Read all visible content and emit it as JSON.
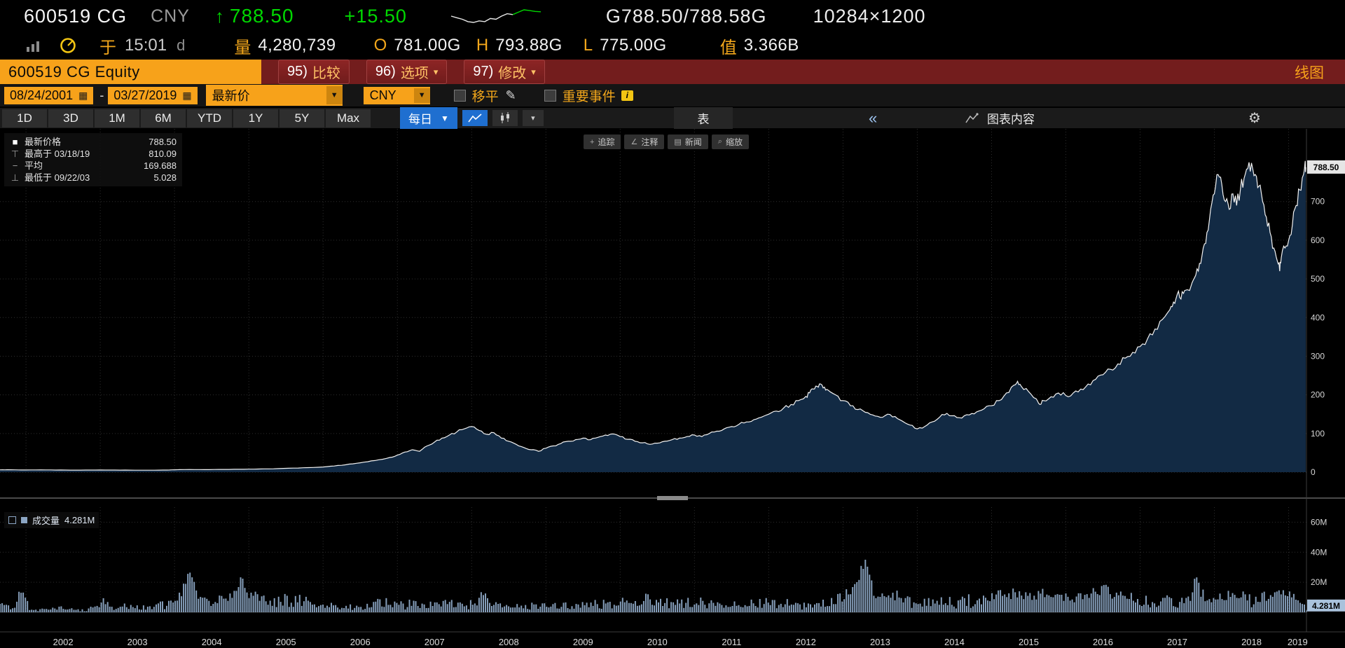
{
  "colors": {
    "amber": "#f7a21a",
    "green": "#00d800",
    "menu_red": "#731d1d",
    "blue": "#1f6fd0",
    "area_fill": "#122a44",
    "line": "#f2f2f2",
    "volume_bar": "#8ca6c4"
  },
  "icons": {
    "up_arrow": "↑",
    "dropdown": "▼",
    "menu_arrow": "▾",
    "calendar": "▦",
    "pencil": "✎",
    "info_i": "i",
    "collapse": "«",
    "gear": "⚙",
    "track": "+",
    "annotate": "∠",
    "news": "▤",
    "zoom": "⌕"
  },
  "ticker_bar": {
    "symbol": "600519 CG",
    "currency": "CNY",
    "last_price": "788.50",
    "change": "+15.50",
    "bid_ask": "G788.50/788.58G",
    "lot_sizes": "10284×1200",
    "sparkline": [
      783,
      781,
      779,
      776,
      775,
      777,
      776,
      780,
      779,
      783,
      786,
      785,
      788,
      791,
      790,
      789,
      788.5
    ]
  },
  "stats_bar": {
    "at_label": "于",
    "time": "15:01",
    "delay_flag": "d",
    "volume_label": "量",
    "volume": "4,280,739",
    "open_label": "O",
    "open": "781.00G",
    "high_label": "H",
    "high": "793.88G",
    "low_label": "L",
    "low": "775.00G",
    "value_label": "值",
    "value": "3.366B"
  },
  "menu_bar": {
    "security": "600519 CG Equity",
    "compare": {
      "num": "95)",
      "label": "比较",
      "arrow": ""
    },
    "options": {
      "num": "96)",
      "label": "选项",
      "arrow": "▾"
    },
    "modify": {
      "num": "97)",
      "label": "修改",
      "arrow": "▾"
    },
    "right_label": "线图"
  },
  "toolbar": {
    "date_from": "08/24/2001",
    "range_separator": "-",
    "date_to": "03/27/2019",
    "field_selector": "最新价",
    "currency_selector": "CNY",
    "mov_avg_label": "移平",
    "events_label": "重要事件"
  },
  "tab_bar": {
    "ranges": [
      "1D",
      "3D",
      "1M",
      "6M",
      "YTD",
      "1Y",
      "5Y",
      "Max"
    ],
    "period": "每日",
    "table_label": "表",
    "chart_content_label": "图表内容"
  },
  "chart_tools": {
    "track": "追踪",
    "annotate": "注释",
    "news": "新闻",
    "zoom": "缩放"
  },
  "legend": {
    "last": {
      "marker": "■",
      "label": "最新价格",
      "value": "788.50"
    },
    "high": {
      "marker": "⊤",
      "label": "最高于 03/18/19",
      "value": "810.09"
    },
    "avg": {
      "marker": "−",
      "label": "平均",
      "value": "169.688"
    },
    "low": {
      "marker": "⊥",
      "label": "最低于 09/22/03",
      "value": "5.028"
    }
  },
  "volume_panel": {
    "legend_label": "成交量",
    "legend_value": "4.281M"
  },
  "badges": {
    "price": "788.50",
    "volume": "4.281M"
  },
  "chart_data": {
    "type": "area",
    "series_name": "最新价格",
    "x_range": [
      2001.65,
      2019.24
    ],
    "ylim": [
      0,
      888
    ],
    "vol_lim": [
      0,
      70
    ],
    "x_ticks": [
      2002,
      2003,
      2004,
      2005,
      2006,
      2007,
      2008,
      2009,
      2010,
      2011,
      2012,
      2013,
      2014,
      2015,
      2016,
      2017,
      2018,
      2019
    ],
    "y_ticks": [
      0,
      100,
      200,
      300,
      400,
      500,
      600,
      700
    ],
    "volume_ticks": [
      {
        "v": 20,
        "label": "20M"
      },
      {
        "v": 40,
        "label": "40M"
      },
      {
        "v": 60,
        "label": "60M"
      }
    ],
    "last_price": 788.5,
    "last_volume_m": 4.281,
    "high": {
      "date": "03/18/19",
      "value": 810.09
    },
    "average": 169.688,
    "low": {
      "date": "09/22/03",
      "value": 5.028
    },
    "points": [
      [
        2001.65,
        6.0,
        8
      ],
      [
        2001.75,
        6.3,
        5
      ],
      [
        2001.9,
        5.8,
        3.5
      ],
      [
        2002.0,
        5.6,
        22
      ],
      [
        2002.2,
        5.9,
        4
      ],
      [
        2002.4,
        5.5,
        3
      ],
      [
        2002.6,
        5.3,
        2.5
      ],
      [
        2002.8,
        5.4,
        3
      ],
      [
        2003.0,
        5.6,
        4.5
      ],
      [
        2003.2,
        5.4,
        3
      ],
      [
        2003.4,
        5.2,
        2.5
      ],
      [
        2003.6,
        5.1,
        2
      ],
      [
        2003.73,
        5.03,
        3
      ],
      [
        2003.9,
        5.5,
        5
      ],
      [
        2004.0,
        6.2,
        10
      ],
      [
        2004.2,
        6.8,
        5
      ],
      [
        2004.4,
        6.5,
        4
      ],
      [
        2004.6,
        7.0,
        6
      ],
      [
        2004.8,
        7.4,
        5
      ],
      [
        2005.0,
        7.8,
        6
      ],
      [
        2005.2,
        8.5,
        5
      ],
      [
        2005.4,
        9.2,
        6
      ],
      [
        2005.6,
        10.5,
        7
      ],
      [
        2005.8,
        11.8,
        8
      ],
      [
        2006.0,
        13.5,
        12
      ],
      [
        2006.15,
        16,
        20
      ],
      [
        2006.3,
        19,
        28
      ],
      [
        2006.45,
        23,
        14
      ],
      [
        2006.6,
        27,
        12
      ],
      [
        2006.75,
        32,
        10
      ],
      [
        2006.9,
        38,
        13
      ],
      [
        2007.0,
        44,
        15
      ],
      [
        2007.1,
        52,
        18
      ],
      [
        2007.2,
        58,
        24
      ],
      [
        2007.3,
        54,
        12
      ],
      [
        2007.4,
        68,
        14
      ],
      [
        2007.5,
        78,
        12
      ],
      [
        2007.6,
        88,
        10
      ],
      [
        2007.7,
        96,
        11
      ],
      [
        2007.8,
        104,
        12
      ],
      [
        2007.9,
        112,
        10
      ],
      [
        2008.0,
        118,
        12
      ],
      [
        2008.1,
        108,
        9
      ],
      [
        2008.2,
        98,
        8
      ],
      [
        2008.3,
        102,
        7
      ],
      [
        2008.4,
        88,
        8
      ],
      [
        2008.5,
        80,
        6
      ],
      [
        2008.6,
        72,
        7
      ],
      [
        2008.7,
        64,
        6
      ],
      [
        2008.8,
        58,
        5
      ],
      [
        2008.9,
        54,
        6
      ],
      [
        2009.0,
        62,
        9
      ],
      [
        2009.1,
        68,
        8
      ],
      [
        2009.2,
        74,
        10
      ],
      [
        2009.3,
        80,
        8
      ],
      [
        2009.4,
        84,
        7
      ],
      [
        2009.5,
        88,
        9
      ],
      [
        2009.6,
        84,
        6
      ],
      [
        2009.7,
        90,
        8
      ],
      [
        2009.8,
        96,
        7
      ],
      [
        2009.9,
        99,
        8
      ],
      [
        2010.0,
        92,
        9
      ],
      [
        2010.1,
        85,
        7
      ],
      [
        2010.2,
        80,
        6
      ],
      [
        2010.3,
        76,
        8
      ],
      [
        2010.4,
        72,
        6
      ],
      [
        2010.5,
        75,
        18
      ],
      [
        2010.6,
        80,
        7
      ],
      [
        2010.7,
        84,
        6
      ],
      [
        2010.8,
        88,
        7
      ],
      [
        2010.9,
        92,
        6
      ],
      [
        2011.0,
        96,
        8
      ],
      [
        2011.1,
        92,
        6
      ],
      [
        2011.2,
        100,
        7
      ],
      [
        2011.3,
        106,
        8
      ],
      [
        2011.4,
        112,
        7
      ],
      [
        2011.5,
        118,
        9
      ],
      [
        2011.6,
        124,
        8
      ],
      [
        2011.7,
        130,
        7
      ],
      [
        2011.8,
        136,
        8
      ],
      [
        2011.9,
        142,
        9
      ],
      [
        2012.0,
        150,
        10
      ],
      [
        2012.1,
        158,
        9
      ],
      [
        2012.2,
        166,
        8
      ],
      [
        2012.3,
        175,
        9
      ],
      [
        2012.4,
        185,
        10
      ],
      [
        2012.5,
        196,
        11
      ],
      [
        2012.55,
        205,
        10
      ],
      [
        2012.6,
        215,
        12
      ],
      [
        2012.65,
        222,
        11
      ],
      [
        2012.7,
        228,
        10
      ],
      [
        2012.75,
        220,
        9
      ],
      [
        2012.8,
        212,
        10
      ],
      [
        2012.9,
        200,
        9
      ],
      [
        2013.0,
        185,
        11
      ],
      [
        2013.1,
        172,
        10
      ],
      [
        2013.2,
        162,
        9
      ],
      [
        2013.3,
        155,
        8
      ],
      [
        2013.4,
        148,
        9
      ],
      [
        2013.5,
        142,
        8
      ],
      [
        2013.6,
        150,
        7
      ],
      [
        2013.7,
        144,
        8
      ],
      [
        2013.8,
        132,
        9
      ],
      [
        2013.9,
        122,
        8
      ],
      [
        2014.0,
        112,
        10
      ],
      [
        2014.1,
        118,
        9
      ],
      [
        2014.2,
        130,
        8
      ],
      [
        2014.3,
        142,
        9
      ],
      [
        2014.4,
        152,
        8
      ],
      [
        2014.5,
        146,
        7
      ],
      [
        2014.6,
        140,
        6
      ],
      [
        2014.7,
        148,
        7
      ],
      [
        2014.8,
        156,
        8
      ],
      [
        2014.9,
        164,
        9
      ],
      [
        2015.0,
        172,
        12
      ],
      [
        2015.1,
        185,
        14
      ],
      [
        2015.2,
        205,
        16
      ],
      [
        2015.3,
        225,
        26
      ],
      [
        2015.35,
        235,
        38
      ],
      [
        2015.4,
        222,
        16
      ],
      [
        2015.5,
        208,
        14
      ],
      [
        2015.6,
        190,
        12
      ],
      [
        2015.65,
        175,
        15
      ],
      [
        2015.7,
        185,
        11
      ],
      [
        2015.8,
        195,
        10
      ],
      [
        2015.9,
        205,
        11
      ],
      [
        2016.0,
        198,
        10
      ],
      [
        2016.1,
        205,
        9
      ],
      [
        2016.2,
        215,
        10
      ],
      [
        2016.3,
        228,
        11
      ],
      [
        2016.4,
        240,
        10
      ],
      [
        2016.5,
        252,
        11
      ],
      [
        2016.6,
        266,
        12
      ],
      [
        2016.7,
        280,
        11
      ],
      [
        2016.8,
        295,
        12
      ],
      [
        2016.9,
        310,
        13
      ],
      [
        2017.0,
        325,
        14
      ],
      [
        2017.1,
        345,
        15
      ],
      [
        2017.2,
        370,
        16
      ],
      [
        2017.3,
        395,
        14
      ],
      [
        2017.4,
        420,
        16
      ],
      [
        2017.45,
        440,
        14
      ],
      [
        2017.5,
        460,
        15
      ],
      [
        2017.55,
        448,
        13
      ],
      [
        2017.6,
        470,
        14
      ],
      [
        2017.7,
        490,
        13
      ],
      [
        2017.75,
        510,
        12
      ],
      [
        2017.8,
        540,
        14
      ],
      [
        2017.85,
        580,
        15
      ],
      [
        2017.9,
        620,
        16
      ],
      [
        2017.95,
        680,
        17
      ],
      [
        2018.0,
        720,
        18
      ],
      [
        2018.05,
        770,
        16
      ],
      [
        2018.1,
        745,
        14
      ],
      [
        2018.15,
        700,
        13
      ],
      [
        2018.2,
        680,
        12
      ],
      [
        2018.25,
        720,
        11
      ],
      [
        2018.3,
        690,
        10
      ],
      [
        2018.35,
        730,
        11
      ],
      [
        2018.4,
        760,
        12
      ],
      [
        2018.45,
        785,
        11
      ],
      [
        2018.5,
        800,
        12
      ],
      [
        2018.55,
        770,
        11
      ],
      [
        2018.6,
        740,
        25
      ],
      [
        2018.65,
        700,
        14
      ],
      [
        2018.7,
        660,
        13
      ],
      [
        2018.75,
        620,
        12
      ],
      [
        2018.8,
        580,
        14
      ],
      [
        2018.85,
        545,
        13
      ],
      [
        2018.88,
        520,
        15
      ],
      [
        2018.9,
        555,
        12
      ],
      [
        2018.95,
        580,
        11
      ],
      [
        2019.0,
        600,
        13
      ],
      [
        2019.05,
        640,
        14
      ],
      [
        2019.1,
        690,
        15
      ],
      [
        2019.15,
        730,
        16
      ],
      [
        2019.2,
        770,
        14
      ],
      [
        2019.22,
        800,
        12
      ],
      [
        2019.23,
        788.5,
        4.281
      ]
    ]
  }
}
